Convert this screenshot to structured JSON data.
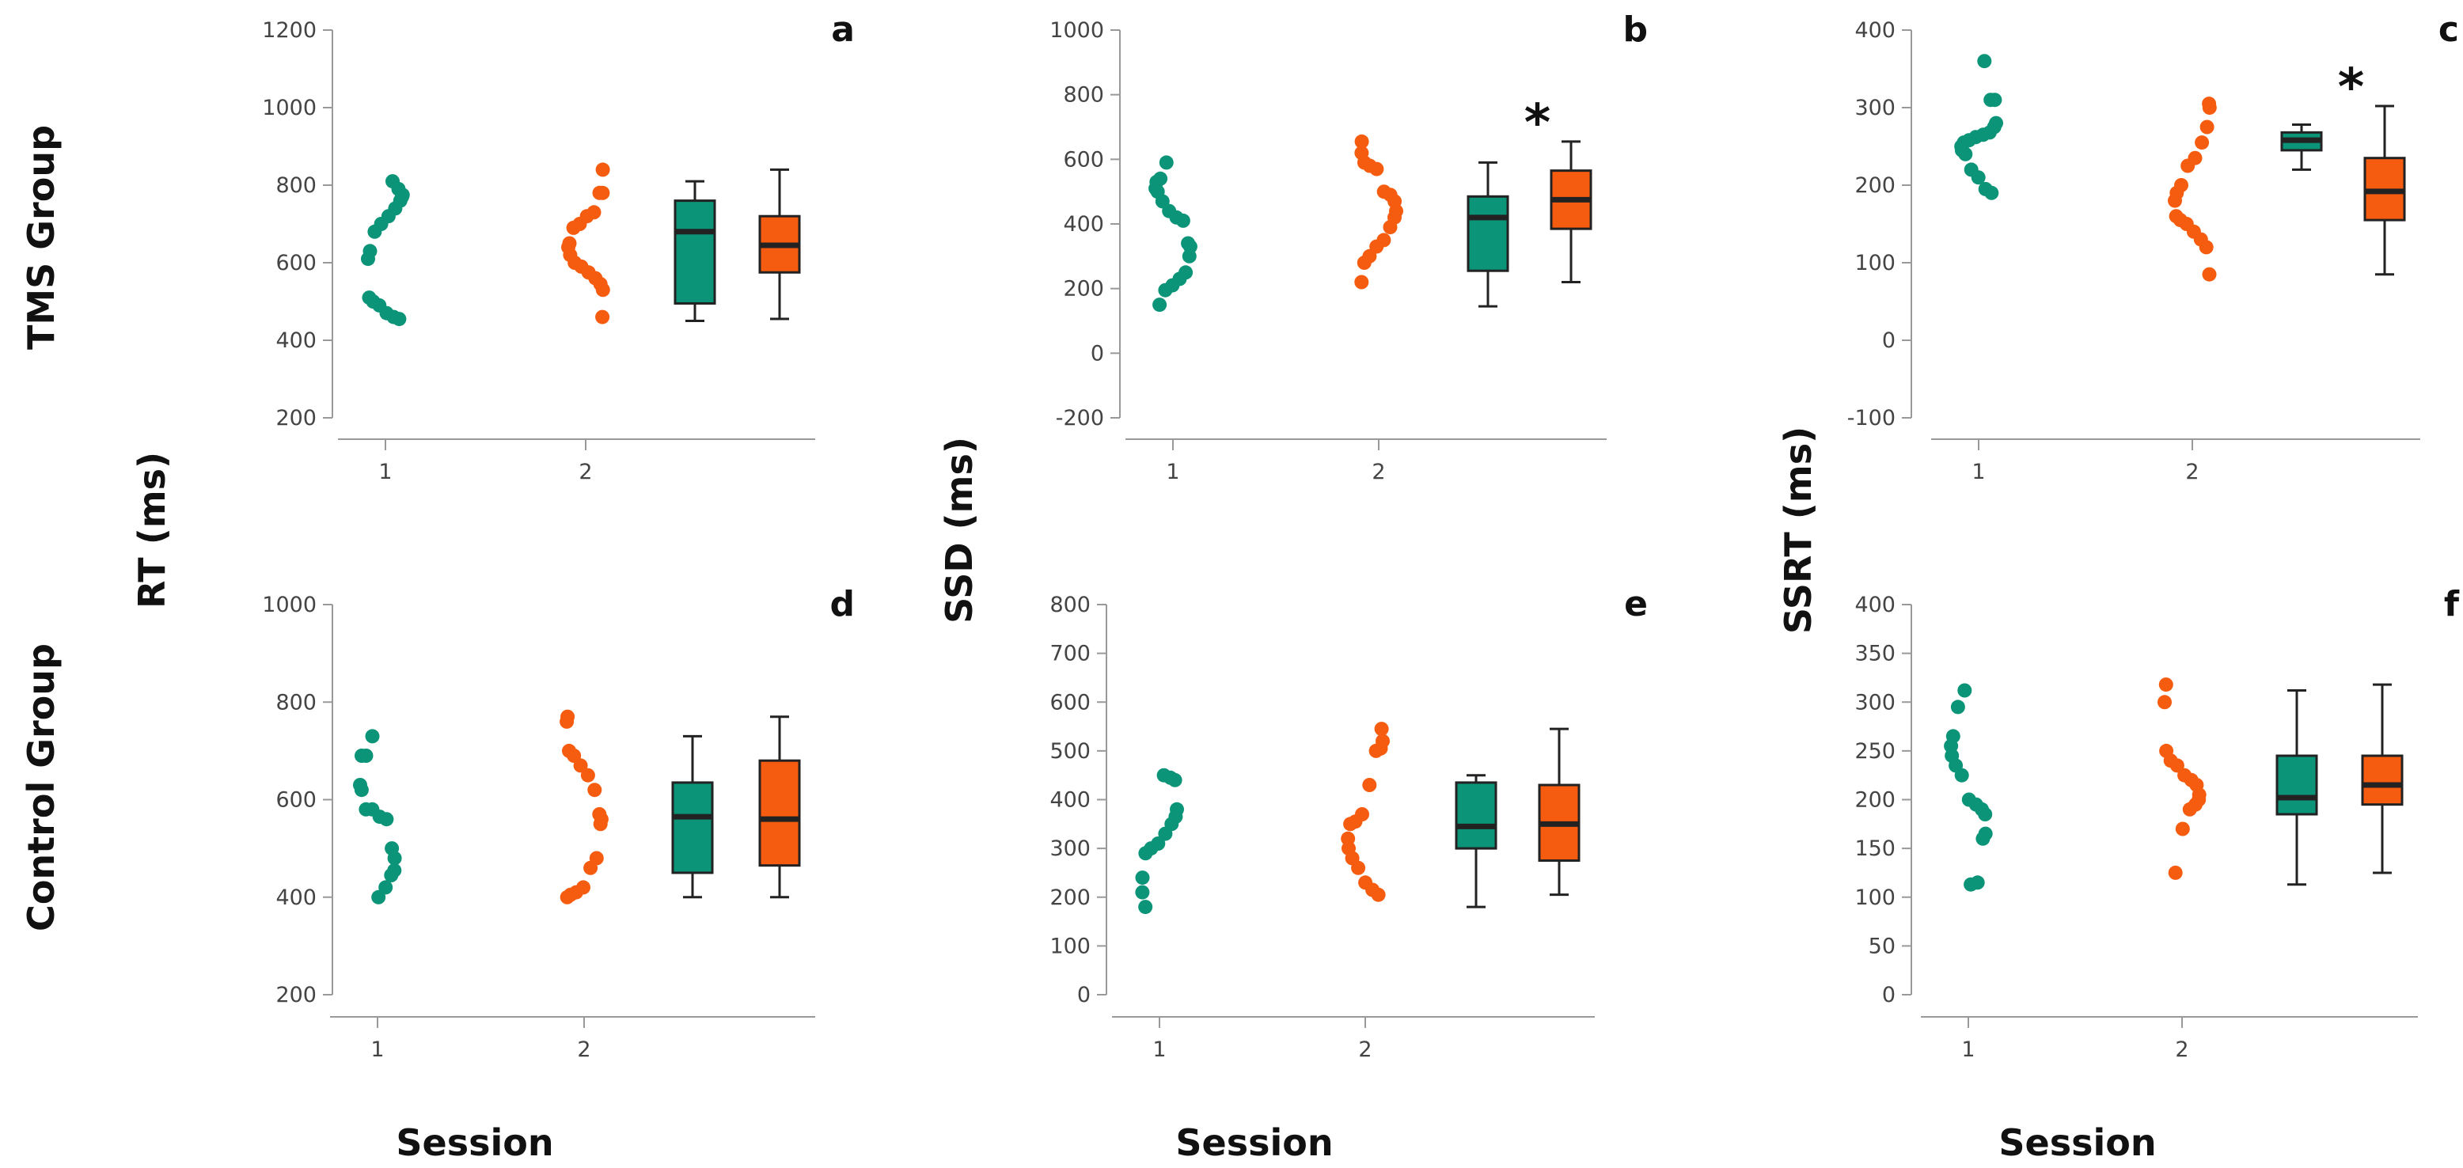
{
  "figure": {
    "row_labels": [
      "TMS Group",
      "Control Group"
    ],
    "y_labels": [
      "RT (ms)",
      "SSD (ms)",
      "SSRT (ms)"
    ],
    "x_label": "Session"
  },
  "colors": {
    "session1": "#0b9478",
    "session2": "#f65c0f",
    "box_line": "#222222",
    "axis": "#999999"
  },
  "chart_data": [
    {
      "type": "scatter+box",
      "panel": "a",
      "row": "TMS Group",
      "ylabel": "RT (ms)",
      "xlabel": "Session",
      "x_categories": [
        "1",
        "2"
      ],
      "ylim": [
        200,
        1200
      ],
      "yticks": [
        200,
        400,
        600,
        800,
        1000,
        1200
      ],
      "annotation": "",
      "series": [
        {
          "name": "Session 1",
          "color": "#0b9478",
          "points": [
            810,
            790,
            770,
            775,
            760,
            740,
            720,
            700,
            680,
            630,
            610,
            510,
            500,
            490,
            470,
            460,
            455
          ]
        },
        {
          "name": "Session 2",
          "color": "#f65c0f",
          "points": [
            840,
            780,
            780,
            730,
            720,
            700,
            690,
            650,
            640,
            620,
            600,
            590,
            575,
            560,
            545,
            530,
            460
          ]
        }
      ],
      "boxes": [
        {
          "session": "1",
          "color": "#0b9478",
          "min": 450,
          "q1": 495,
          "median": 680,
          "q3": 760,
          "max": 810
        },
        {
          "session": "2",
          "color": "#f65c0f",
          "min": 455,
          "q1": 575,
          "median": 645,
          "q3": 720,
          "max": 840
        }
      ]
    },
    {
      "type": "scatter+box",
      "panel": "b",
      "row": "TMS Group",
      "ylabel": "SSD (ms)",
      "xlabel": "Session",
      "x_categories": [
        "1",
        "2"
      ],
      "ylim": [
        -200,
        1000
      ],
      "yticks": [
        -200,
        0,
        200,
        400,
        600,
        800,
        1000
      ],
      "annotation": "*",
      "series": [
        {
          "name": "Session 1",
          "color": "#0b9478",
          "points": [
            590,
            540,
            530,
            510,
            500,
            470,
            440,
            420,
            410,
            340,
            330,
            300,
            250,
            230,
            210,
            195,
            150
          ]
        },
        {
          "name": "Session 2",
          "color": "#f65c0f",
          "points": [
            655,
            620,
            590,
            580,
            570,
            500,
            490,
            470,
            440,
            420,
            390,
            350,
            330,
            300,
            280,
            220
          ]
        }
      ],
      "boxes": [
        {
          "session": "1",
          "color": "#0b9478",
          "min": 145,
          "q1": 255,
          "median": 420,
          "q3": 485,
          "max": 590
        },
        {
          "session": "2",
          "color": "#f65c0f",
          "min": 220,
          "q1": 385,
          "median": 475,
          "q3": 565,
          "max": 655
        }
      ]
    },
    {
      "type": "scatter+box",
      "panel": "c",
      "row": "TMS Group",
      "ylabel": "SSRT (ms)",
      "xlabel": "Session",
      "x_categories": [
        "1",
        "2"
      ],
      "ylim": [
        -100,
        400
      ],
      "yticks": [
        -100,
        0,
        100,
        200,
        300,
        400
      ],
      "annotation": "*",
      "series": [
        {
          "name": "Session 1",
          "color": "#0b9478",
          "points": [
            360,
            310,
            310,
            280,
            275,
            268,
            265,
            262,
            258,
            255,
            250,
            245,
            240,
            220,
            210,
            195,
            190
          ]
        },
        {
          "name": "Session 2",
          "color": "#f65c0f",
          "points": [
            305,
            300,
            275,
            255,
            235,
            225,
            200,
            190,
            180,
            160,
            155,
            150,
            140,
            130,
            120,
            85
          ]
        }
      ],
      "boxes": [
        {
          "session": "1",
          "color": "#0b9478",
          "min": 220,
          "q1": 245,
          "median": 258,
          "q3": 268,
          "max": 278
        },
        {
          "session": "2",
          "color": "#f65c0f",
          "min": 85,
          "q1": 155,
          "median": 192,
          "q3": 235,
          "max": 302
        }
      ]
    },
    {
      "type": "scatter+box",
      "panel": "d",
      "row": "Control Group",
      "ylabel": "RT (ms)",
      "xlabel": "Session",
      "x_categories": [
        "1",
        "2"
      ],
      "ylim": [
        200,
        1000
      ],
      "yticks": [
        200,
        400,
        600,
        800,
        1000
      ],
      "annotation": "",
      "series": [
        {
          "name": "Session 1",
          "color": "#0b9478",
          "points": [
            730,
            690,
            690,
            630,
            620,
            580,
            580,
            565,
            560,
            500,
            480,
            455,
            445,
            420,
            400
          ]
        },
        {
          "name": "Session 2",
          "color": "#f65c0f",
          "points": [
            770,
            760,
            700,
            690,
            670,
            650,
            620,
            570,
            560,
            550,
            480,
            460,
            420,
            410,
            405,
            400
          ]
        }
      ],
      "boxes": [
        {
          "session": "1",
          "color": "#0b9478",
          "min": 400,
          "q1": 450,
          "median": 565,
          "q3": 635,
          "max": 730
        },
        {
          "session": "2",
          "color": "#f65c0f",
          "min": 400,
          "q1": 465,
          "median": 560,
          "q3": 680,
          "max": 770
        }
      ]
    },
    {
      "type": "scatter+box",
      "panel": "e",
      "row": "Control Group",
      "ylabel": "SSD (ms)",
      "xlabel": "Session",
      "x_categories": [
        "1",
        "2"
      ],
      "ylim": [
        0,
        800
      ],
      "yticks": [
        0,
        100,
        200,
        300,
        400,
        500,
        600,
        700,
        800
      ],
      "annotation": "",
      "series": [
        {
          "name": "Session 1",
          "color": "#0b9478",
          "points": [
            450,
            445,
            440,
            380,
            365,
            350,
            330,
            310,
            300,
            290,
            240,
            210,
            180
          ]
        },
        {
          "name": "Session 2",
          "color": "#f65c0f",
          "points": [
            545,
            520,
            505,
            500,
            430,
            370,
            355,
            350,
            320,
            300,
            280,
            260,
            230,
            215,
            205
          ]
        }
      ],
      "boxes": [
        {
          "session": "1",
          "color": "#0b9478",
          "min": 180,
          "q1": 300,
          "median": 345,
          "q3": 435,
          "max": 450
        },
        {
          "session": "2",
          "color": "#f65c0f",
          "min": 205,
          "q1": 275,
          "median": 350,
          "q3": 430,
          "max": 545
        }
      ]
    },
    {
      "type": "scatter+box",
      "panel": "f",
      "row": "Control Group",
      "ylabel": "SSRT (ms)",
      "xlabel": "Session",
      "x_categories": [
        "1",
        "2"
      ],
      "ylim": [
        0,
        400
      ],
      "yticks": [
        0,
        50,
        100,
        150,
        200,
        250,
        300,
        350,
        400
      ],
      "annotation": "",
      "series": [
        {
          "name": "Session 1",
          "color": "#0b9478",
          "points": [
            312,
            295,
            265,
            255,
            245,
            235,
            225,
            200,
            195,
            190,
            185,
            165,
            160,
            115,
            113
          ]
        },
        {
          "name": "Session 2",
          "color": "#f65c0f",
          "points": [
            318,
            300,
            250,
            240,
            235,
            225,
            220,
            215,
            205,
            200,
            195,
            190,
            170,
            125
          ]
        }
      ],
      "boxes": [
        {
          "session": "1",
          "color": "#0b9478",
          "min": 113,
          "q1": 185,
          "median": 202,
          "q3": 245,
          "max": 312
        },
        {
          "session": "2",
          "color": "#f65c0f",
          "min": 125,
          "q1": 195,
          "median": 215,
          "q3": 245,
          "max": 318
        }
      ]
    }
  ]
}
